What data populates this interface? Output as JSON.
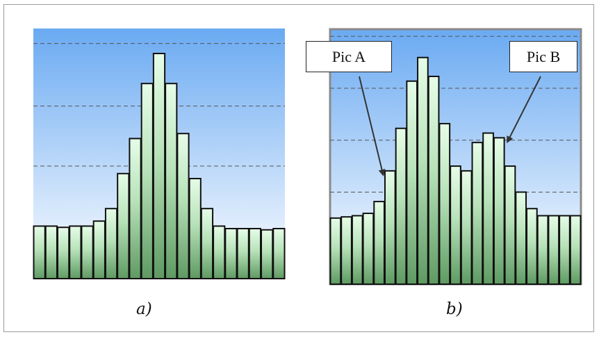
{
  "colors": {
    "bg_top": "#6aaaf2",
    "bg_bottom": "#ffffff",
    "bar_light": "#e6fde8",
    "bar_dark": "#5e9a62",
    "bar_stroke": "#111111",
    "grid": "#555555",
    "outer_border": "#9a9a9a"
  },
  "chart_data": [
    {
      "type": "bar",
      "caption": "a)",
      "values": [
        2.1,
        2.1,
        2.05,
        2.1,
        2.1,
        2.3,
        2.8,
        4.2,
        5.6,
        7.8,
        9.0,
        7.8,
        5.8,
        4.0,
        2.8,
        2.1,
        2.0,
        2.0,
        2.0,
        1.95,
        2.0
      ],
      "ylim": [
        0,
        10
      ],
      "grid_y": [
        4.5,
        6.9,
        9.4
      ],
      "grid": true,
      "series": [
        {
          "values": [
            2.1,
            2.1,
            2.05,
            2.1,
            2.1,
            2.3,
            2.8,
            4.2,
            5.6,
            7.8,
            9.0,
            7.8,
            5.8,
            4.0,
            2.8,
            2.1,
            2.0,
            2.0,
            2.0,
            1.95,
            2.0
          ]
        }
      ]
    },
    {
      "type": "bar",
      "caption": "b)",
      "values": [
        2.8,
        2.85,
        2.9,
        3.0,
        3.5,
        4.8,
        6.6,
        8.6,
        9.6,
        8.8,
        6.8,
        5.0,
        4.8,
        6.0,
        6.4,
        6.2,
        5.0,
        3.9,
        3.2,
        2.9,
        2.9,
        2.9,
        2.9
      ],
      "ylim": [
        0,
        10.8
      ],
      "grid_y": [
        3.9,
        6.1,
        8.3,
        10.5
      ],
      "grid": true,
      "series": [
        {
          "values": [
            2.8,
            2.85,
            2.9,
            3.0,
            3.5,
            4.8,
            6.6,
            8.6,
            9.6,
            8.8,
            6.8,
            5.0,
            4.8,
            6.0,
            6.4,
            6.2,
            5.0,
            3.9,
            3.2,
            2.9,
            2.9,
            2.9,
            2.9
          ]
        }
      ],
      "annotations": [
        {
          "text": "Pic A",
          "bar_index": 5
        },
        {
          "text": "Pic B",
          "bar_index": 15
        }
      ]
    }
  ]
}
